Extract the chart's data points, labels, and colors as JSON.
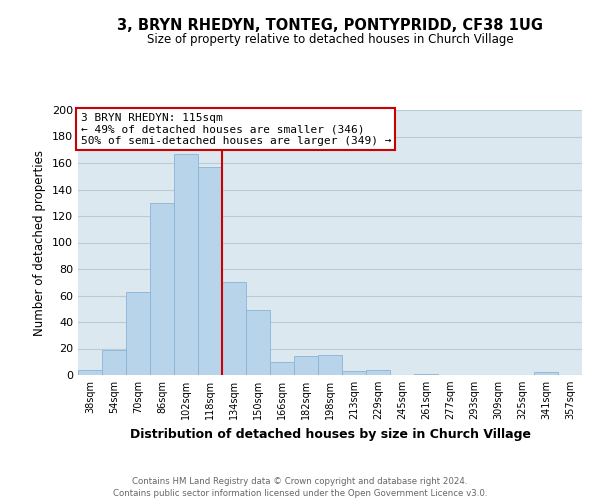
{
  "title": "3, BRYN RHEDYN, TONTEG, PONTYPRIDD, CF38 1UG",
  "subtitle": "Size of property relative to detached houses in Church Village",
  "xlabel": "Distribution of detached houses by size in Church Village",
  "ylabel": "Number of detached properties",
  "bin_labels": [
    "38sqm",
    "54sqm",
    "70sqm",
    "86sqm",
    "102sqm",
    "118sqm",
    "134sqm",
    "150sqm",
    "166sqm",
    "182sqm",
    "198sqm",
    "213sqm",
    "229sqm",
    "245sqm",
    "261sqm",
    "277sqm",
    "293sqm",
    "309sqm",
    "325sqm",
    "341sqm",
    "357sqm"
  ],
  "bar_values": [
    4,
    19,
    63,
    130,
    167,
    157,
    70,
    49,
    10,
    14,
    15,
    3,
    4,
    0,
    1,
    0,
    0,
    0,
    0,
    2,
    0
  ],
  "bar_color": "#b8d4ea",
  "bar_edge_color": "#8ab4d4",
  "vline_x": 5.5,
  "vline_color": "#cc0000",
  "annotation_title": "3 BRYN RHEDYN: 115sqm",
  "annotation_line1": "← 49% of detached houses are smaller (346)",
  "annotation_line2": "50% of semi-detached houses are larger (349) →",
  "annotation_box_color": "#ffffff",
  "annotation_box_edge_color": "#cc0000",
  "ylim": [
    0,
    200
  ],
  "yticks": [
    0,
    20,
    40,
    60,
    80,
    100,
    120,
    140,
    160,
    180,
    200
  ],
  "footer1": "Contains HM Land Registry data © Crown copyright and database right 2024.",
  "footer2": "Contains public sector information licensed under the Open Government Licence v3.0.",
  "background_color": "#ffffff",
  "axes_bg_color": "#dce8f0",
  "grid_color": "#b8ccd8"
}
